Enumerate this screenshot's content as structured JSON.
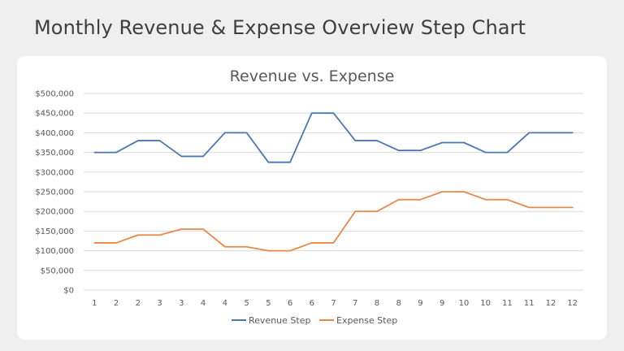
{
  "page": {
    "title": "Monthly Revenue & Expense Overview Step Chart"
  },
  "chart_data": {
    "type": "line",
    "title": "Revenue vs. Expense",
    "xlabel": "",
    "ylabel": "",
    "x": [
      "1",
      "2",
      "2",
      "3",
      "3",
      "4",
      "4",
      "5",
      "5",
      "6",
      "6",
      "7",
      "7",
      "8",
      "8",
      "9",
      "9",
      "10",
      "10",
      "11",
      "11",
      "12",
      "12"
    ],
    "y_ticks": [
      "$0",
      "$50,000",
      "$100,000",
      "$150,000",
      "$200,000",
      "$250,000",
      "$300,000",
      "$350,000",
      "$400,000",
      "$450,000",
      "$500,000"
    ],
    "ylim": [
      0,
      500000
    ],
    "grid": true,
    "legend_position": "bottom",
    "series": [
      {
        "name": "Revenue Step",
        "color": "#4a76b3",
        "values": [
          350000,
          350000,
          380000,
          380000,
          340000,
          340000,
          400000,
          400000,
          325000,
          325000,
          450000,
          450000,
          380000,
          380000,
          355000,
          355000,
          375000,
          375000,
          350000,
          350000,
          400000,
          400000,
          400000
        ]
      },
      {
        "name": "Expense Step",
        "color": "#e8894a",
        "values": [
          120000,
          120000,
          140000,
          140000,
          155000,
          155000,
          110000,
          110000,
          100000,
          100000,
          120000,
          120000,
          200000,
          200000,
          230000,
          230000,
          250000,
          250000,
          230000,
          230000,
          210000,
          210000,
          210000
        ]
      }
    ]
  }
}
